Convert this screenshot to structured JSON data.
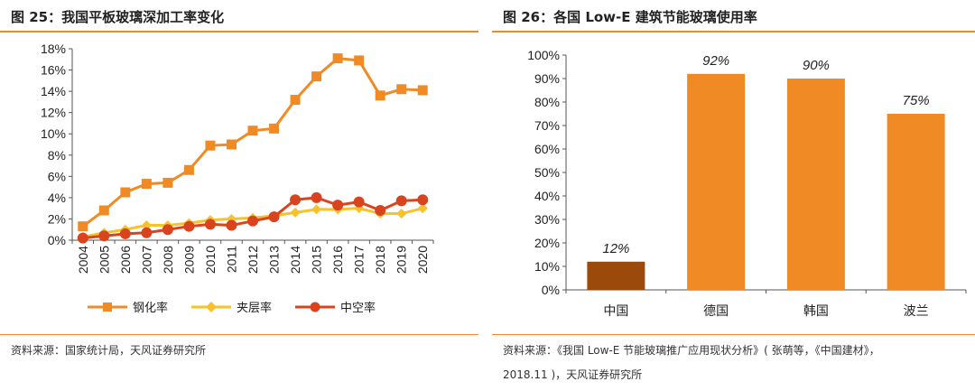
{
  "left": {
    "title": "图 25：我国平板玻璃深加工率变化",
    "source": "资料来源：国家统计局，天风证券研究所"
  },
  "right": {
    "title": "图 26：各国 Low-E 建筑节能玻璃使用率",
    "source_line1": "资料来源：《我国 Low-E 节能玻璃推广应用现状分析》( 张萌等，《中国建材》，",
    "source_line2": "2018.11 )，天风证券研究所"
  },
  "chart_data": [
    {
      "type": "line",
      "title": "我国平板玻璃深加工率变化",
      "x": [
        "2004",
        "2005",
        "2006",
        "2007",
        "2008",
        "2009",
        "2010",
        "2011",
        "2012",
        "2013",
        "2014",
        "2015",
        "2016",
        "2017",
        "2018",
        "2019",
        "2020"
      ],
      "ylim": [
        0,
        18
      ],
      "yticks": [
        "0%",
        "2%",
        "4%",
        "6%",
        "8%",
        "10%",
        "12%",
        "14%",
        "16%",
        "18%"
      ],
      "series": [
        {
          "name": "钢化率",
          "color": "#f08a24",
          "marker": "square",
          "values": [
            1.3,
            2.8,
            4.5,
            5.3,
            5.4,
            6.6,
            8.9,
            9.0,
            10.3,
            10.5,
            13.2,
            15.4,
            17.1,
            16.9,
            13.6,
            14.2,
            14.1
          ]
        },
        {
          "name": "夹层率",
          "color": "#f7c22a",
          "marker": "diamond",
          "values": [
            0.3,
            0.7,
            1.0,
            1.4,
            1.4,
            1.6,
            1.9,
            2.0,
            2.1,
            2.3,
            2.6,
            2.9,
            2.9,
            3.0,
            2.5,
            2.5,
            3.0
          ]
        },
        {
          "name": "中空率",
          "color": "#d9441f",
          "marker": "circle",
          "values": [
            0.2,
            0.4,
            0.6,
            0.7,
            1.0,
            1.3,
            1.5,
            1.4,
            1.8,
            2.2,
            3.8,
            4.0,
            3.3,
            3.6,
            2.8,
            3.7,
            3.8
          ]
        }
      ],
      "legend": "bottom"
    },
    {
      "type": "bar",
      "title": "各国 Low-E 建筑节能玻璃使用率",
      "categories": [
        "中国",
        "德国",
        "韩国",
        "波兰"
      ],
      "values": [
        12,
        92,
        90,
        75
      ],
      "data_labels": [
        "12%",
        "92%",
        "90%",
        "75%"
      ],
      "colors": [
        "#9b4a0c",
        "#f08a24",
        "#f08a24",
        "#f08a24"
      ],
      "ylim": [
        0,
        100
      ],
      "yticks": [
        "0%",
        "10%",
        "20%",
        "30%",
        "40%",
        "50%",
        "60%",
        "70%",
        "80%",
        "90%",
        "100%"
      ]
    }
  ]
}
